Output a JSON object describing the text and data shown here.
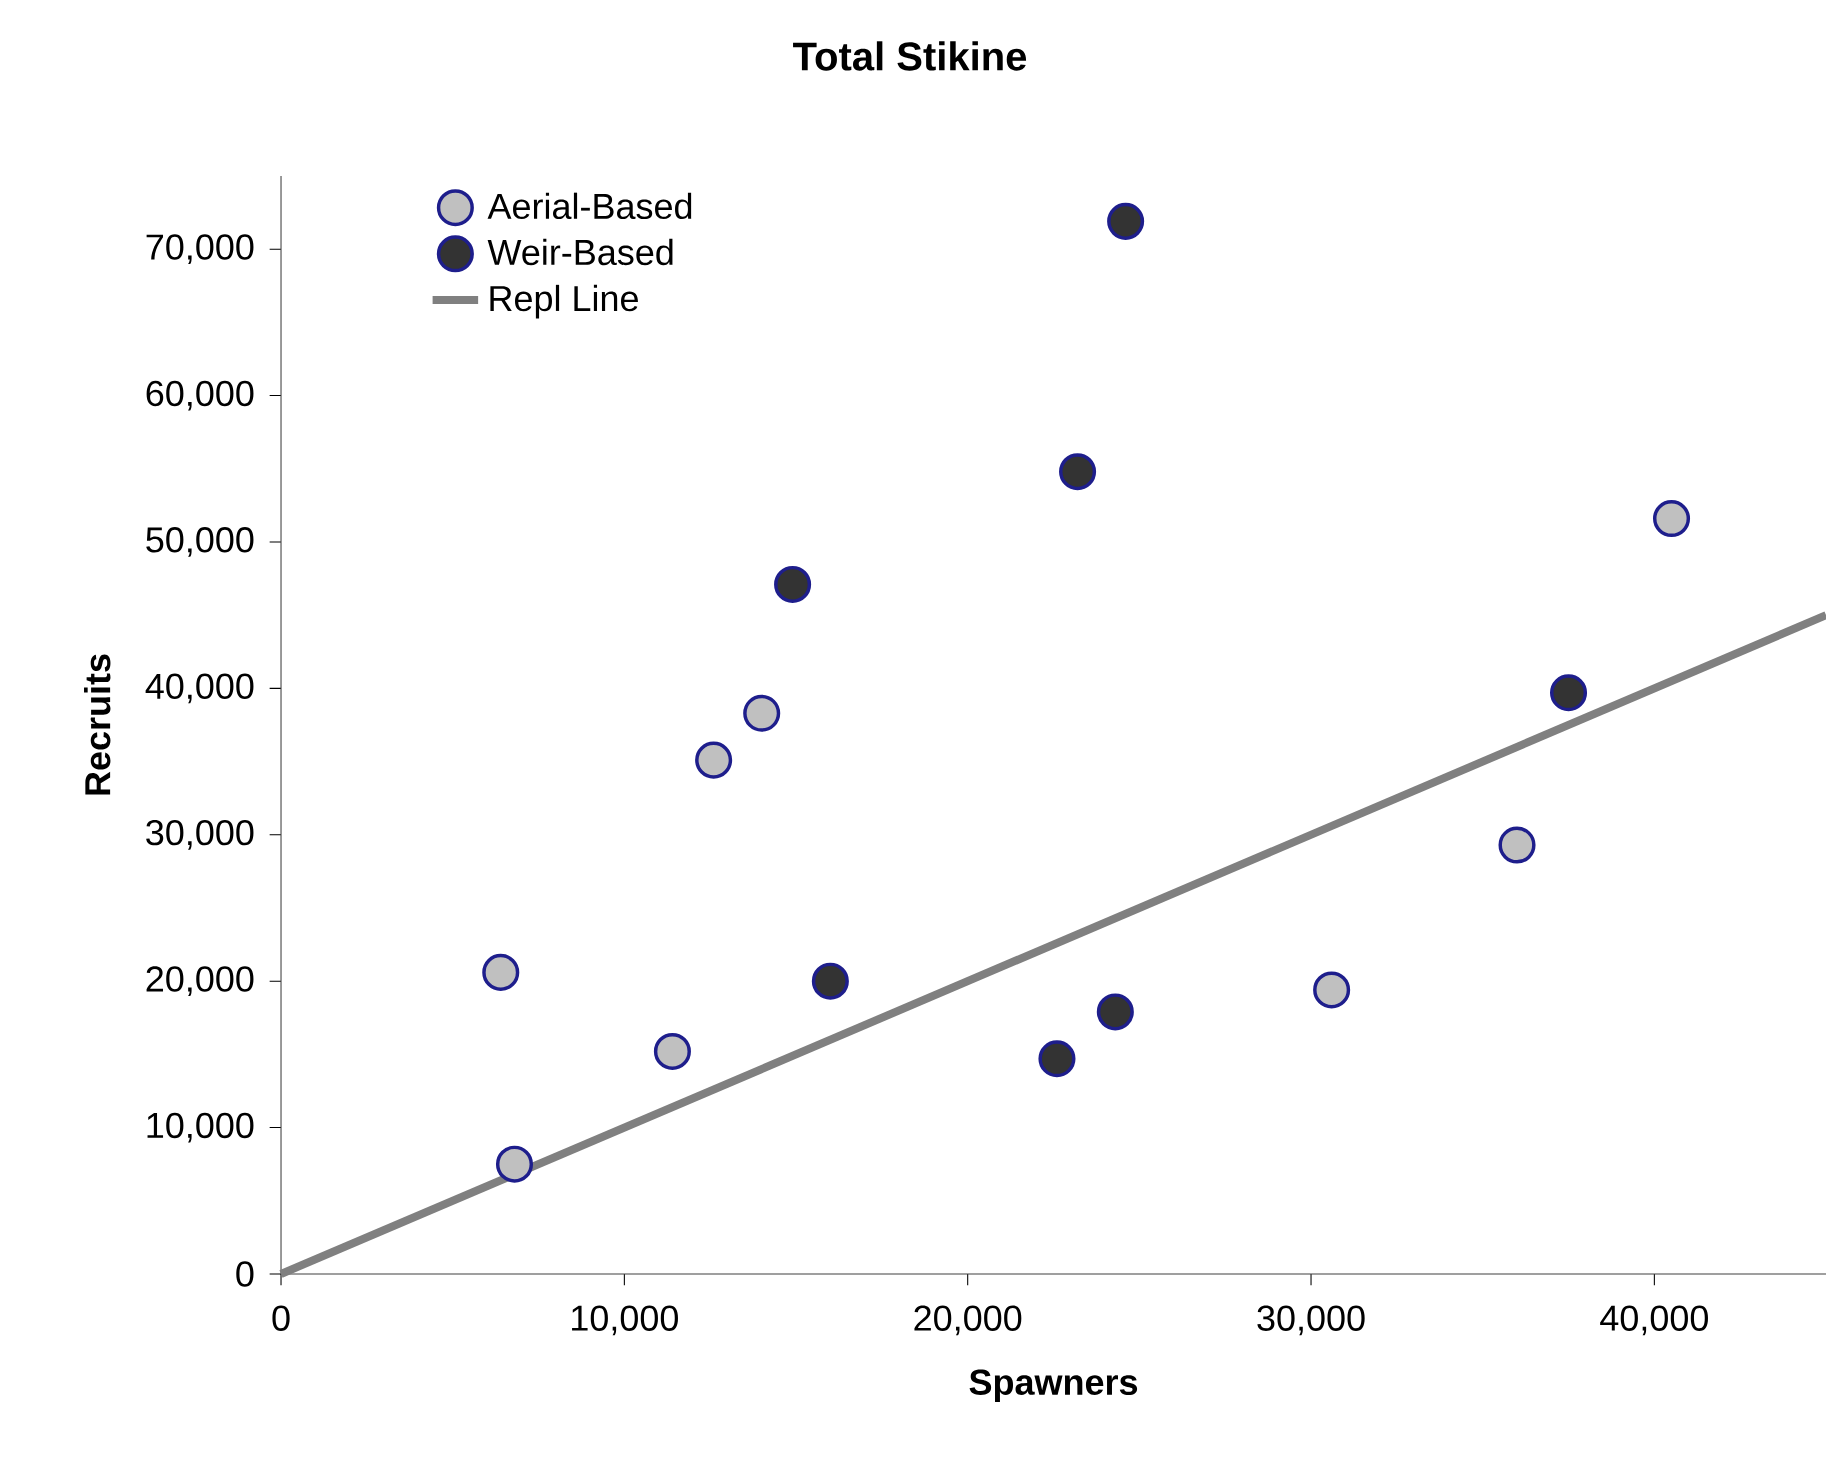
{
  "chart_data": {
    "type": "scatter",
    "title": "Total Stikine",
    "xlabel": "Spawners",
    "ylabel": "Recruits",
    "xlim": [
      0,
      45000
    ],
    "ylim": [
      0,
      75000
    ],
    "xticks": [
      0,
      {
        "value": 10000,
        "label": "10,000"
      },
      {
        "value": 20000,
        "label": "20,000"
      },
      {
        "value": 30000,
        "label": "30,000"
      },
      {
        "value": 40000,
        "label": "40,000"
      }
    ],
    "yticks": [
      0,
      {
        "value": 10000,
        "label": "10,000"
      },
      {
        "value": 20000,
        "label": "20,000"
      },
      {
        "value": 30000,
        "label": "30,000"
      },
      {
        "value": 40000,
        "label": "40,000"
      },
      {
        "value": 50000,
        "label": "50,000"
      },
      {
        "value": 60000,
        "label": "60,000"
      },
      {
        "value": 70000,
        "label": "70,000"
      }
    ],
    "legend": "top left",
    "series": [
      {
        "name": "Aerial-Based",
        "type": "scatter",
        "marker": "circle",
        "color": "#c0c0c0",
        "x": [
          6400,
          6800,
          11400,
          12600,
          14000,
          30600,
          36000,
          40500
        ],
        "values": [
          20600,
          7500,
          15200,
          35100,
          38300,
          19400,
          29300,
          51600
        ]
      },
      {
        "name": "Weir-Based",
        "type": "scatter",
        "marker": "circle",
        "color": "#333333",
        "x": [
          14900,
          16000,
          22600,
          23200,
          24300,
          24600,
          37500
        ],
        "values": [
          47100,
          20000,
          14700,
          54800,
          17900,
          71900,
          39700
        ]
      },
      {
        "name": "Repl Line",
        "type": "line",
        "marker": "none",
        "color": "#808080",
        "x": [
          0,
          45000
        ],
        "values": [
          0,
          45000
        ]
      }
    ]
  }
}
